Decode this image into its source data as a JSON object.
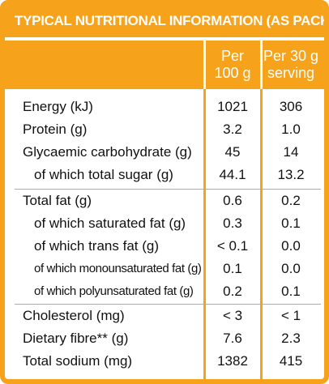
{
  "table": {
    "title": "TYPICAL NUTRITIONAL INFORMATION (AS PACKED)",
    "col_per_100g_line1": "Per",
    "col_per_100g_line2": "100 g",
    "col_per_serving_line1": "Per 30 g",
    "col_per_serving_line2": "serving",
    "rows": [
      {
        "label": "Energy (kJ)",
        "per_100g": "1021",
        "per_serving": "306"
      },
      {
        "label": "Protein (g)",
        "per_100g": "3.2",
        "per_serving": "1.0"
      },
      {
        "label": "Glycaemic carbohydrate (g)",
        "per_100g": "45",
        "per_serving": "14"
      },
      {
        "label": "of which total sugar (g)",
        "per_100g": "44.1",
        "per_serving": "13.2"
      },
      {
        "label": "Total fat (g)",
        "per_100g": "0.6",
        "per_serving": "0.2"
      },
      {
        "label": "of which saturated fat (g)",
        "per_100g": "0.3",
        "per_serving": "0.1"
      },
      {
        "label": "of which trans fat (g)",
        "per_100g": "< 0.1",
        "per_serving": "0.0"
      },
      {
        "label": "of which monounsaturated fat (g)",
        "per_100g": "0.1",
        "per_serving": "0.0"
      },
      {
        "label": "of which polyunsaturated fat (g)",
        "per_100g": "0.2",
        "per_serving": "0.1"
      },
      {
        "label": "Cholesterol (mg)",
        "per_100g": "< 3",
        "per_serving": "< 1"
      },
      {
        "label": "Dietary fibre** (g)",
        "per_100g": "7.6",
        "per_serving": "2.3"
      },
      {
        "label": "Total sodium (mg)",
        "per_100g": "1382",
        "per_serving": "415"
      }
    ]
  },
  "colors": {
    "accent": "#f7a21b",
    "text": "#111111",
    "header_text": "#ffffff"
  }
}
